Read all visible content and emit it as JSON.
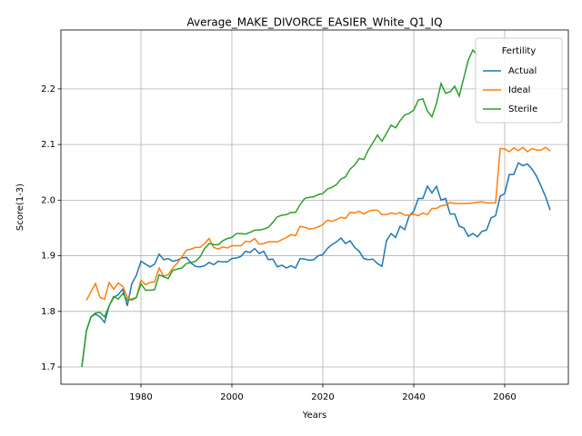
{
  "chart_data": {
    "type": "line",
    "title": "Average_MAKE_DIVORCE_EASIER_White_Q1_IQ",
    "x_label": "Years",
    "y_label": "Score(1-3)",
    "legend_title": "Fertility",
    "legend_position": "upper right",
    "grid": true,
    "xlim": [
      1962.4,
      2074
    ],
    "ylim": [
      1.669,
      2.306
    ],
    "xticks": [
      1980,
      2000,
      2020,
      2040,
      2060
    ],
    "yticks": [
      1.7,
      1.8,
      1.9,
      {
        "value": 2,
        "label": "2.0"
      },
      2.1,
      2.2
    ],
    "x": [
      1967,
      1968,
      1969,
      1970,
      1971,
      1972,
      1973,
      1974,
      1975,
      1976,
      1977,
      1978,
      1979,
      1980,
      1981,
      1982,
      1983,
      1984,
      1985,
      1986,
      1987,
      1988,
      1989,
      1990,
      1991,
      1992,
      1993,
      1994,
      1995,
      1996,
      1997,
      1998,
      1999,
      2000,
      2001,
      2002,
      2003,
      2004,
      2005,
      2006,
      2007,
      2008,
      2009,
      2010,
      2011,
      2012,
      2013,
      2014,
      2015,
      2016,
      2017,
      2018,
      2019,
      2020,
      2021,
      2022,
      2023,
      2024,
      2025,
      2026,
      2027,
      2028,
      2029,
      2030,
      2031,
      2032,
      2033,
      2034,
      2035,
      2036,
      2037,
      2038,
      2039,
      2040,
      2041,
      2042,
      2043,
      2044,
      2045,
      2046,
      2047,
      2048,
      2049,
      2050,
      2051,
      2052,
      2053,
      2054,
      2055,
      2056,
      2057,
      2058,
      2059,
      2060,
      2061,
      2062,
      2063,
      2064,
      2065,
      2066,
      2067,
      2068,
      2069,
      2070
    ],
    "series": [
      {
        "name": "Actual",
        "color": "#1f77b4",
        "values": [
          1.7,
          1.765,
          1.79,
          1.795,
          1.79,
          1.78,
          1.81,
          1.825,
          1.83,
          1.84,
          1.81,
          1.85,
          1.865,
          1.89,
          1.885,
          1.88,
          1.885,
          1.903,
          1.893,
          1.895,
          1.89,
          1.892,
          1.896,
          1.897,
          1.887,
          1.881,
          1.88,
          1.882,
          1.888,
          1.884,
          1.89,
          1.889,
          1.889,
          1.895,
          1.896,
          1.899,
          1.908,
          1.906,
          1.913,
          1.904,
          1.908,
          1.893,
          1.894,
          1.88,
          1.883,
          1.878,
          1.882,
          1.878,
          1.895,
          1.894,
          1.892,
          1.893,
          1.9,
          1.902,
          1.913,
          1.92,
          1.925,
          1.932,
          1.922,
          1.927,
          1.915,
          1.908,
          1.895,
          1.893,
          1.894,
          1.886,
          1.881,
          1.927,
          1.94,
          1.933,
          1.953,
          1.947,
          1.972,
          1.98,
          2.003,
          2.003,
          2.025,
          2.013,
          2.025,
          2.0,
          2.003,
          1.975,
          1.975,
          1.953,
          1.95,
          1.935,
          1.94,
          1.934,
          1.944,
          1.946,
          1.968,
          1.972,
          2.007,
          2.012,
          2.046,
          2.046,
          2.067,
          2.062,
          2.065,
          2.056,
          2.043,
          2.025,
          2.006,
          1.982
        ]
      },
      {
        "name": "Ideal",
        "color": "#ff7f0e",
        "values": [
          null,
          1.82,
          1.835,
          1.85,
          1.825,
          1.822,
          1.852,
          1.84,
          1.851,
          1.845,
          1.825,
          1.82,
          1.825,
          1.856,
          1.848,
          1.852,
          1.853,
          1.878,
          1.863,
          1.866,
          1.878,
          1.887,
          1.898,
          1.91,
          1.912,
          1.915,
          1.915,
          1.922,
          1.931,
          1.915,
          1.912,
          1.916,
          1.914,
          1.918,
          1.918,
          1.918,
          1.926,
          1.925,
          1.931,
          1.921,
          1.922,
          1.925,
          1.925,
          1.925,
          1.929,
          1.933,
          1.938,
          1.936,
          1.953,
          1.951,
          1.948,
          1.949,
          1.952,
          1.956,
          1.964,
          1.962,
          1.965,
          1.969,
          1.967,
          1.978,
          1.977,
          1.98,
          1.975,
          1.98,
          1.982,
          1.982,
          1.974,
          1.974,
          1.977,
          1.975,
          1.978,
          1.973,
          1.973,
          1.975,
          1.972,
          1.977,
          1.974,
          1.985,
          1.985,
          1.99,
          1.991,
          1.996,
          1.994,
          1.994,
          1.994,
          1.994,
          1.995,
          1.996,
          1.997,
          1.995,
          1.995,
          1.995,
          2.093,
          2.092,
          2.087,
          2.094,
          2.089,
          2.095,
          2.087,
          2.093,
          2.09,
          2.09,
          2.095,
          2.088
        ]
      },
      {
        "name": "Sterile",
        "color": "#2ca02c",
        "values": [
          1.7,
          1.765,
          1.79,
          1.797,
          1.798,
          1.79,
          1.81,
          1.827,
          1.822,
          1.832,
          1.82,
          1.822,
          1.825,
          1.85,
          1.838,
          1.838,
          1.839,
          1.866,
          1.862,
          1.859,
          1.874,
          1.876,
          1.878,
          1.886,
          1.888,
          1.89,
          1.898,
          1.913,
          1.922,
          1.92,
          1.92,
          1.927,
          1.931,
          1.933,
          1.94,
          1.94,
          1.939,
          1.942,
          1.946,
          1.946,
          1.948,
          1.951,
          1.96,
          1.97,
          1.973,
          1.974,
          1.978,
          1.978,
          1.992,
          2.003,
          2.005,
          2.006,
          2.01,
          2.012,
          2.02,
          2.023,
          2.028,
          2.038,
          2.042,
          2.056,
          2.063,
          2.075,
          2.073,
          2.09,
          2.103,
          2.117,
          2.106,
          2.12,
          2.135,
          2.13,
          2.143,
          2.153,
          2.156,
          2.162,
          2.18,
          2.182,
          2.16,
          2.15,
          2.174,
          2.21,
          2.192,
          2.195,
          2.205,
          2.187,
          2.22,
          2.252,
          2.27,
          2.26,
          null,
          null,
          null,
          null,
          null,
          null,
          null,
          null,
          null,
          null,
          null,
          null,
          null,
          null,
          null,
          null
        ]
      }
    ]
  }
}
